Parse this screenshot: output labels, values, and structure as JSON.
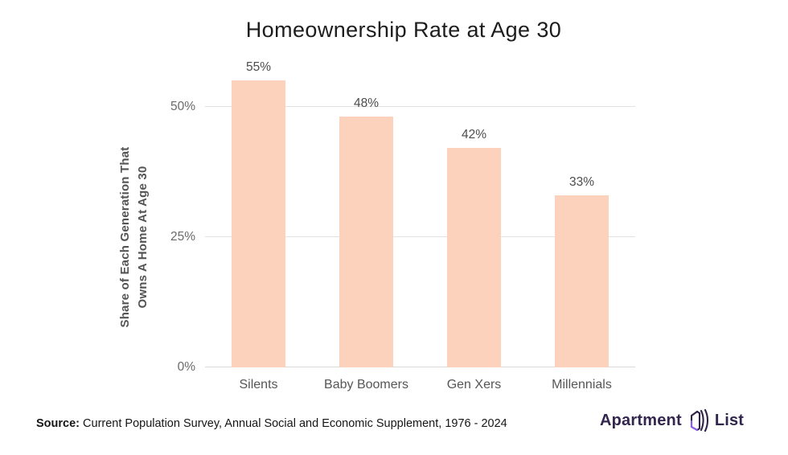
{
  "title": "Homeownership Rate at Age 30",
  "chart_data": {
    "type": "bar",
    "title": "Homeownership Rate at Age 30",
    "categories": [
      "Silents",
      "Baby Boomers",
      "Gen Xers",
      "Millennials"
    ],
    "values": [
      55,
      48,
      42,
      33
    ],
    "value_labels": [
      "55%",
      "48%",
      "42%",
      "33%"
    ],
    "ylabel_line1": "Share of Each Generation That",
    "ylabel_line2": "Owns A Home At Age 30",
    "xlabel": "",
    "y_ticks": [
      {
        "value": 0,
        "label": "0%"
      },
      {
        "value": 25,
        "label": "25%"
      },
      {
        "value": 50,
        "label": "50%"
      }
    ],
    "ylim": [
      0,
      57
    ],
    "grid": true,
    "legend": "none",
    "bar_color": "#fcd2bd"
  },
  "footer": {
    "source_label": "Source:",
    "source_text": " Current Population Survey, Annual Social and Economic Supplement, 1976 - 2024",
    "logo": {
      "word1": "Apartment",
      "word2": "List",
      "icon": "apartment-list-house-icon",
      "text_color": "#32264e",
      "icon_color": "#2e2347",
      "accent_color": "#8b5cf6"
    }
  },
  "colors": {
    "bar": "#fcd2bd",
    "gridline": "#e2e2e2",
    "title_text": "#1d1d1d",
    "axis_text": "#6a6a6a",
    "label_text": "#565656"
  }
}
